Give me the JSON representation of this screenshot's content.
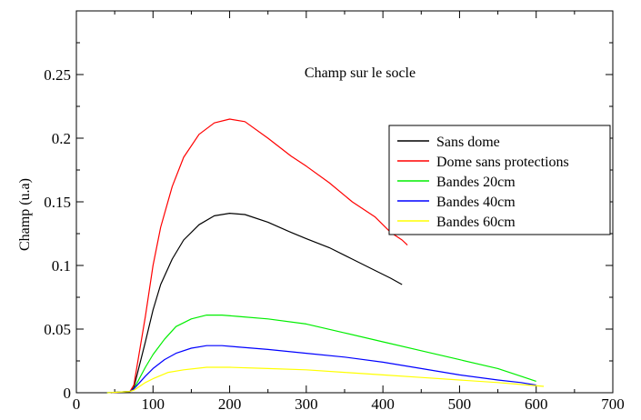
{
  "chart_data": {
    "type": "line",
    "title": "",
    "annotation": "Champ sur le socle",
    "xlabel": "",
    "ylabel": "Champ (u.a)",
    "xlim": [
      0,
      700
    ],
    "ylim": [
      0,
      0.3
    ],
    "x_ticks": [
      0,
      100,
      200,
      300,
      400,
      500,
      600,
      700
    ],
    "y_ticks": [
      0,
      0.05,
      0.1,
      0.15,
      0.2,
      0.25
    ],
    "x_tick_labels": [
      "0",
      "100",
      "200",
      "300",
      "400",
      "500",
      "600",
      "700"
    ],
    "y_tick_labels": [
      "0",
      "0.05",
      "0.1",
      "0.15",
      "0.2",
      "0.25"
    ],
    "grid": false,
    "legend_position": "right",
    "series": [
      {
        "name": "Sans dome",
        "color": "#000000",
        "points": [
          [
            45,
            0
          ],
          [
            70,
            0.001
          ],
          [
            75,
            0.004
          ],
          [
            90,
            0.04
          ],
          [
            100,
            0.065
          ],
          [
            110,
            0.085
          ],
          [
            125,
            0.105
          ],
          [
            140,
            0.12
          ],
          [
            160,
            0.132
          ],
          [
            180,
            0.139
          ],
          [
            200,
            0.141
          ],
          [
            220,
            0.14
          ],
          [
            250,
            0.134
          ],
          [
            280,
            0.126
          ],
          [
            300,
            0.121
          ],
          [
            330,
            0.114
          ],
          [
            360,
            0.105
          ],
          [
            390,
            0.096
          ],
          [
            410,
            0.09
          ],
          [
            425,
            0.085
          ]
        ]
      },
      {
        "name": "Dome sans protections",
        "color": "#ff0000",
        "points": [
          [
            45,
            0
          ],
          [
            70,
            0.001
          ],
          [
            75,
            0.006
          ],
          [
            90,
            0.06
          ],
          [
            100,
            0.1
          ],
          [
            110,
            0.13
          ],
          [
            125,
            0.162
          ],
          [
            140,
            0.185
          ],
          [
            160,
            0.203
          ],
          [
            180,
            0.212
          ],
          [
            200,
            0.215
          ],
          [
            220,
            0.213
          ],
          [
            250,
            0.2
          ],
          [
            280,
            0.186
          ],
          [
            300,
            0.178
          ],
          [
            330,
            0.165
          ],
          [
            360,
            0.15
          ],
          [
            390,
            0.138
          ],
          [
            410,
            0.126
          ],
          [
            425,
            0.12
          ],
          [
            432,
            0.116
          ]
        ]
      },
      {
        "name": "Bandes 20cm",
        "color": "#00ee00",
        "points": [
          [
            40,
            0
          ],
          [
            70,
            0.001
          ],
          [
            75,
            0.003
          ],
          [
            90,
            0.02
          ],
          [
            100,
            0.03
          ],
          [
            115,
            0.042
          ],
          [
            130,
            0.052
          ],
          [
            150,
            0.058
          ],
          [
            170,
            0.061
          ],
          [
            190,
            0.061
          ],
          [
            210,
            0.06
          ],
          [
            250,
            0.058
          ],
          [
            300,
            0.054
          ],
          [
            350,
            0.047
          ],
          [
            400,
            0.04
          ],
          [
            450,
            0.033
          ],
          [
            500,
            0.026
          ],
          [
            550,
            0.019
          ],
          [
            580,
            0.013
          ],
          [
            600,
            0.009
          ]
        ]
      },
      {
        "name": "Bandes 40cm",
        "color": "#0000ff",
        "points": [
          [
            40,
            0
          ],
          [
            70,
            0.001
          ],
          [
            75,
            0.003
          ],
          [
            90,
            0.013
          ],
          [
            100,
            0.019
          ],
          [
            115,
            0.026
          ],
          [
            130,
            0.031
          ],
          [
            150,
            0.035
          ],
          [
            170,
            0.037
          ],
          [
            190,
            0.037
          ],
          [
            210,
            0.036
          ],
          [
            250,
            0.034
          ],
          [
            300,
            0.031
          ],
          [
            350,
            0.028
          ],
          [
            400,
            0.024
          ],
          [
            450,
            0.019
          ],
          [
            500,
            0.014
          ],
          [
            550,
            0.01
          ],
          [
            580,
            0.008
          ],
          [
            600,
            0.006
          ]
        ]
      },
      {
        "name": "Bandes 60cm",
        "color": "#ffff00",
        "points": [
          [
            40,
            0
          ],
          [
            70,
            0.001
          ],
          [
            75,
            0.002
          ],
          [
            90,
            0.008
          ],
          [
            100,
            0.011
          ],
          [
            120,
            0.016
          ],
          [
            140,
            0.018
          ],
          [
            170,
            0.02
          ],
          [
            200,
            0.02
          ],
          [
            250,
            0.019
          ],
          [
            300,
            0.018
          ],
          [
            350,
            0.016
          ],
          [
            400,
            0.014
          ],
          [
            450,
            0.012
          ],
          [
            500,
            0.01
          ],
          [
            550,
            0.008
          ],
          [
            590,
            0.006
          ],
          [
            610,
            0.005
          ]
        ]
      }
    ]
  }
}
